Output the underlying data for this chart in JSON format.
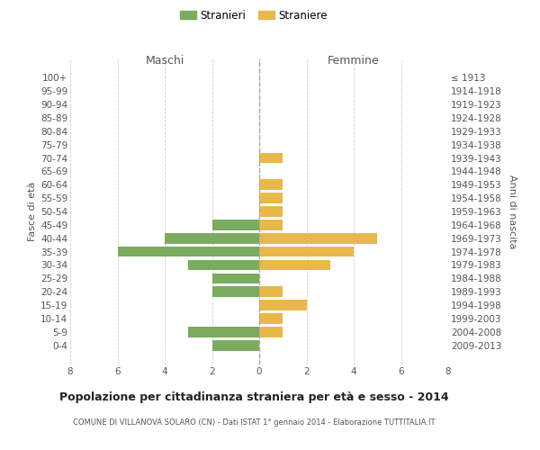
{
  "age_groups": [
    "100+",
    "95-99",
    "90-94",
    "85-89",
    "80-84",
    "75-79",
    "70-74",
    "65-69",
    "60-64",
    "55-59",
    "50-54",
    "45-49",
    "40-44",
    "35-39",
    "30-34",
    "25-29",
    "20-24",
    "15-19",
    "10-14",
    "5-9",
    "0-4"
  ],
  "birth_years": [
    "≤ 1913",
    "1914-1918",
    "1919-1923",
    "1924-1928",
    "1929-1933",
    "1934-1938",
    "1939-1943",
    "1944-1948",
    "1949-1953",
    "1954-1958",
    "1959-1963",
    "1964-1968",
    "1969-1973",
    "1974-1978",
    "1979-1983",
    "1984-1988",
    "1989-1993",
    "1994-1998",
    "1999-2003",
    "2004-2008",
    "2009-2013"
  ],
  "maschi": [
    0,
    0,
    0,
    0,
    0,
    0,
    0,
    0,
    0,
    0,
    0,
    2,
    4,
    6,
    3,
    2,
    2,
    0,
    0,
    3,
    2
  ],
  "femmine": [
    0,
    0,
    0,
    0,
    0,
    0,
    1,
    0,
    1,
    1,
    1,
    1,
    5,
    4,
    3,
    0,
    1,
    2,
    1,
    1,
    0
  ],
  "maschi_color": "#7aab5f",
  "femmine_color": "#e8b84b",
  "title": "Popolazione per cittadinanza straniera per età e sesso - 2014",
  "subtitle": "COMUNE DI VILLANOVA SOLARO (CN) - Dati ISTAT 1° gennaio 2014 - Elaborazione TUTTITALIA.IT",
  "ylabel_left": "Fasce di età",
  "ylabel_right": "Anni di nascita",
  "xlabel_left": "Maschi",
  "xlabel_right": "Femmine",
  "legend_maschi": "Stranieri",
  "legend_femmine": "Straniere",
  "xlim": 8,
  "background_color": "#ffffff",
  "grid_color": "#cccccc"
}
